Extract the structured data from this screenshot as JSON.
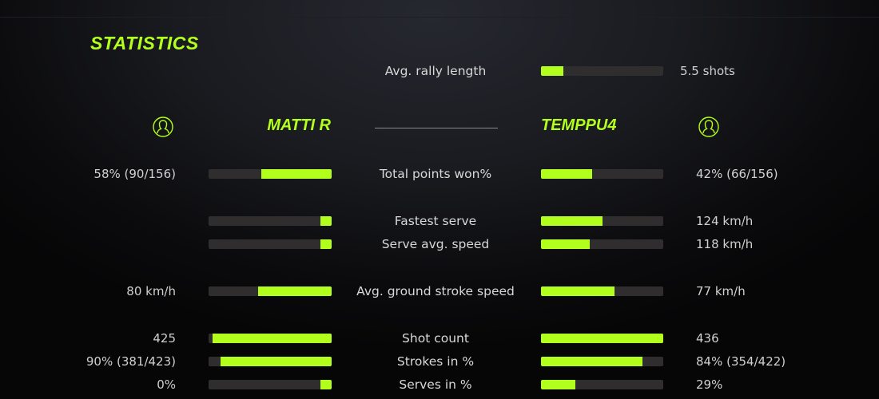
{
  "title": "STATISTICS",
  "accent_color": "#b2ff1e",
  "rally": {
    "label": "Avg. rally length",
    "value": "5.5 shots",
    "fill": 0.18
  },
  "players": {
    "left": {
      "name": "MATTI R",
      "icon": "user-circle-icon"
    },
    "right": {
      "name": "TEMPPU4",
      "icon": "user-circle-icon"
    }
  },
  "stats": [
    {
      "label": "Total points won%",
      "left": "58% (90/156)",
      "right": "42% (66/156)",
      "left_fill": 0.57,
      "right_fill": 0.42
    },
    {
      "label": "Fastest serve",
      "left": "",
      "right": "124 km/h",
      "left_fill": 0.09,
      "right_fill": 0.5
    },
    {
      "label": "Serve avg. speed",
      "left": "",
      "right": "118 km/h",
      "left_fill": 0.09,
      "right_fill": 0.4
    },
    {
      "label": "Avg. ground stroke speed",
      "left": "80 km/h",
      "right": "77 km/h",
      "left_fill": 0.6,
      "right_fill": 0.6
    },
    {
      "label": "Shot count",
      "left": "425",
      "right": "436",
      "left_fill": 0.97,
      "right_fill": 1.0
    },
    {
      "label": "Strokes in %",
      "left": "90% (381/423)",
      "right": "84% (354/422)",
      "left_fill": 0.9,
      "right_fill": 0.83
    },
    {
      "label": "Serves in %",
      "left": "0%",
      "right": "29%",
      "left_fill": 0.09,
      "right_fill": 0.28
    }
  ]
}
